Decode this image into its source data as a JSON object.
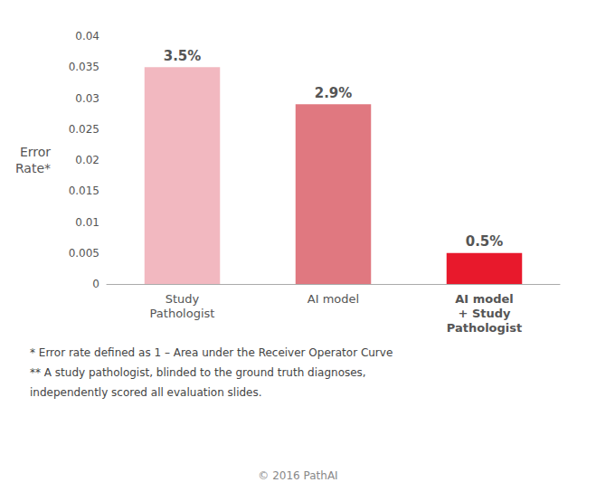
{
  "chart_data": {
    "type": "bar",
    "categories": [
      "Study\nPathologist",
      "AI model",
      "AI model\n+ Study\nPathologist"
    ],
    "values": [
      0.035,
      0.029,
      0.005
    ],
    "value_labels": [
      "3.5%",
      "2.9%",
      "0.5%"
    ],
    "colors": [
      "#f2b8c0",
      "#e07880",
      "#e8192c"
    ],
    "ylabel": "Error\nRate*",
    "ylim": [
      0,
      0.04
    ],
    "yticks": [
      0,
      0.005,
      0.01,
      0.015,
      0.02,
      0.025,
      0.03,
      0.035,
      0.04
    ],
    "data_labels": true,
    "grid": false,
    "footnotes": [
      "* Error rate defined as 1 – Area under the Receiver Operator Curve",
      "** A study pathologist, blinded to the ground truth diagnoses,",
      "independently scored all evaluation slides."
    ],
    "copyright": "© 2016 PathAI"
  }
}
